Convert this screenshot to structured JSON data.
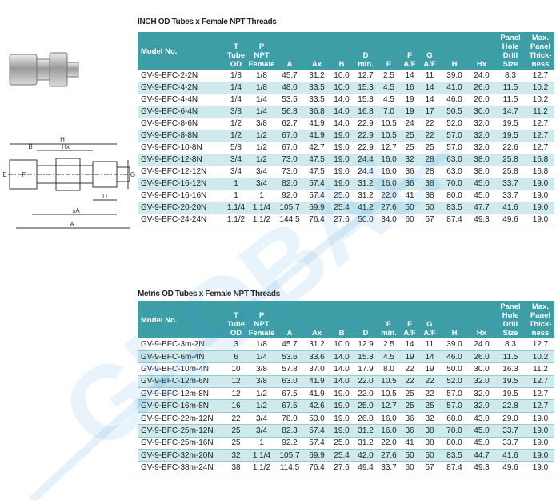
{
  "drawing_labels": [
    "H",
    "Hx",
    "B",
    "E",
    "F",
    "G",
    "D",
    "sA",
    "A"
  ],
  "watermark": "GLOBAL",
  "tables": [
    {
      "title": "INCH OD Tubes x Female NPT Threads",
      "headers": [
        [
          "Model No."
        ],
        [
          "T",
          "Tube",
          "OD"
        ],
        [
          "P",
          "NPT",
          "Female"
        ],
        [
          "A"
        ],
        [
          "Ax"
        ],
        [
          "B"
        ],
        [
          "D",
          "min."
        ],
        [
          "E"
        ],
        [
          "F",
          "A/F"
        ],
        [
          "G",
          "A/F"
        ],
        [
          "H"
        ],
        [
          "Hx"
        ],
        [
          "Panel",
          "Hole",
          "Drill",
          "Size"
        ],
        [
          "Max.",
          "Panel",
          "Thick-",
          "ness"
        ]
      ],
      "rows": [
        [
          "GV-9-BFC-2-2N",
          "1/8",
          "1/8",
          "45.7",
          "31.2",
          "10.0",
          "12.7",
          "2.5",
          "14",
          "11",
          "39.0",
          "24.0",
          "8.3",
          "12.7"
        ],
        [
          "GV-9-BFC-4-2N",
          "1/4",
          "1/8",
          "48.0",
          "33.5",
          "10.0",
          "15.3",
          "4.5",
          "16",
          "14",
          "41.0",
          "26.0",
          "11.5",
          "10.2"
        ],
        [
          "GV-9-BFC-4-4N",
          "1/4",
          "1/4",
          "53.5",
          "33.5",
          "14.0",
          "15.3",
          "4.5",
          "19",
          "14",
          "46.0",
          "26.0",
          "11.5",
          "10.2"
        ],
        [
          "GV-9-BFC-6-4N",
          "3/8",
          "1/4",
          "56.8",
          "36.8",
          "14.0",
          "16.8",
          "7.0",
          "19",
          "17",
          "50.5",
          "30.0",
          "14.7",
          "11.2"
        ],
        [
          "GV-9-BFC-8-6N",
          "1/2",
          "3/8",
          "62.7",
          "41.9",
          "14.0",
          "22.9",
          "10.5",
          "24",
          "22",
          "52.0",
          "32.0",
          "19.5",
          "12.7"
        ],
        [
          "GV-9-BFC-8-8N",
          "1/2",
          "1/2",
          "67.0",
          "41.9",
          "19.0",
          "22.9",
          "10.5",
          "25",
          "22",
          "57.0",
          "32.0",
          "19.5",
          "12.7"
        ],
        [
          "GV-9-BFC-10-8N",
          "5/8",
          "1/2",
          "67.0",
          "42.7",
          "19.0",
          "22.9",
          "12.7",
          "25",
          "25",
          "57.0",
          "32.0",
          "22.6",
          "12.7"
        ],
        [
          "GV-9-BFC-12-8N",
          "3/4",
          "1/2",
          "73.0",
          "47.5",
          "19.0",
          "24.4",
          "16.0",
          "32",
          "28",
          "63.0",
          "38.0",
          "25.8",
          "16.8"
        ],
        [
          "GV-9-BFC-12-12N",
          "3/4",
          "3/4",
          "73.0",
          "47.5",
          "19.0",
          "24.4",
          "16.0",
          "36",
          "28",
          "63.0",
          "38.0",
          "25.8",
          "16.8"
        ],
        [
          "GV-9-BFC-16-12N",
          "1",
          "3/4",
          "82.0",
          "57.4",
          "19.0",
          "31.2",
          "16.0",
          "36",
          "38",
          "70.0",
          "45.0",
          "33.7",
          "19.0"
        ],
        [
          "GV-9-BFC-16-16N",
          "1",
          "1",
          "92.0",
          "57.4",
          "25.0",
          "31.2",
          "22.0",
          "41",
          "38",
          "80.0",
          "45.0",
          "33.7",
          "19.0"
        ],
        [
          "GV-9-BFC-20-20N",
          "1.1/4",
          "1.1/4",
          "105.7",
          "69.9",
          "25.4",
          "41.2",
          "27.6",
          "50",
          "50",
          "83.5",
          "47.7",
          "41.6",
          "19.0"
        ],
        [
          "GV-9-BFC-24-24N",
          "1.1/2",
          "1.1/2",
          "144.5",
          "76.4",
          "27.6",
          "50.0",
          "34.0",
          "60",
          "57",
          "87.4",
          "49.3",
          "49.6",
          "19.0"
        ]
      ]
    },
    {
      "title": "Metric OD Tubes x Female NPT Threads",
      "headers": [
        [
          "Model No."
        ],
        [
          "T",
          "Tube",
          "OD"
        ],
        [
          "P",
          "NPT",
          "Female"
        ],
        [
          "A"
        ],
        [
          "Ax"
        ],
        [
          "B"
        ],
        [
          "D"
        ],
        [
          "E",
          "min."
        ],
        [
          "F",
          "A/F"
        ],
        [
          "G",
          "A/F"
        ],
        [
          "H"
        ],
        [
          "Hx"
        ],
        [
          "Panel",
          "Hole",
          "Drill",
          "Size"
        ],
        [
          "Max.",
          "Panel",
          "Thick-",
          "ness"
        ]
      ],
      "rows": [
        [
          "GV-9-BFC-3m-2N",
          "3",
          "1/8",
          "45.7",
          "31.2",
          "10.0",
          "12.9",
          "2.5",
          "14",
          "11",
          "39.0",
          "24.0",
          "8.3",
          "12.7"
        ],
        [
          "GV-9-BFC-6m-4N",
          "6",
          "1/4",
          "53.6",
          "33.6",
          "14.0",
          "15.3",
          "4.5",
          "19",
          "14",
          "46.0",
          "26.0",
          "11.5",
          "10.2"
        ],
        [
          "GV-9-BFC-10m-4N",
          "10",
          "3/8",
          "57.8",
          "37.0",
          "14.0",
          "17.9",
          "8.0",
          "22",
          "19",
          "50.0",
          "30.0",
          "16.3",
          "11.2"
        ],
        [
          "GV-9-BFC-12m-6N",
          "12",
          "3/8",
          "63.0",
          "41.9",
          "14.0",
          "22.0",
          "10.5",
          "22",
          "22",
          "52.0",
          "32.0",
          "19.5",
          "12.7"
        ],
        [
          "GV-9-BFC-12m-8N",
          "12",
          "1/2",
          "67.5",
          "41.9",
          "19.0",
          "22.0",
          "10.5",
          "25",
          "22",
          "57.0",
          "32.0",
          "19.5",
          "12.7"
        ],
        [
          "GV-9-BFC-16m-8N",
          "16",
          "1/2",
          "67.5",
          "42.6",
          "19.0",
          "25.0",
          "12.7",
          "25",
          "25",
          "57.0",
          "32.0",
          "22.8",
          "12.7"
        ],
        [
          "GV-9-BFC-22m-12N",
          "22",
          "3/4",
          "78.0",
          "53.0",
          "19.0",
          "26.0",
          "16.0",
          "36",
          "32",
          "68.0",
          "43.0",
          "29.0",
          "19.0"
        ],
        [
          "GV-9-BFC-25m-12N",
          "25",
          "3/4",
          "82.3",
          "57.4",
          "19.0",
          "31.2",
          "16.0",
          "36",
          "38",
          "70.0",
          "45.0",
          "33.7",
          "19.0"
        ],
        [
          "GV-9-BFC-25m-16N",
          "25",
          "1",
          "92.2",
          "57.4",
          "25.0",
          "31.2",
          "22.0",
          "41",
          "38",
          "80.0",
          "45.0",
          "33.7",
          "19.0"
        ],
        [
          "GV-9-BFC-32m-20N",
          "32",
          "1.1/4",
          "105.7",
          "69.9",
          "25.4",
          "42.0",
          "27.6",
          "50",
          "50",
          "83.5",
          "44.7",
          "41.6",
          "19.0"
        ],
        [
          "GV-9-BFC-38m-24N",
          "38",
          "1.1/2",
          "114.5",
          "76.4",
          "27.6",
          "49.4",
          "33.7",
          "60",
          "57",
          "87.4",
          "49.3",
          "49.6",
          "19.0"
        ]
      ]
    }
  ]
}
